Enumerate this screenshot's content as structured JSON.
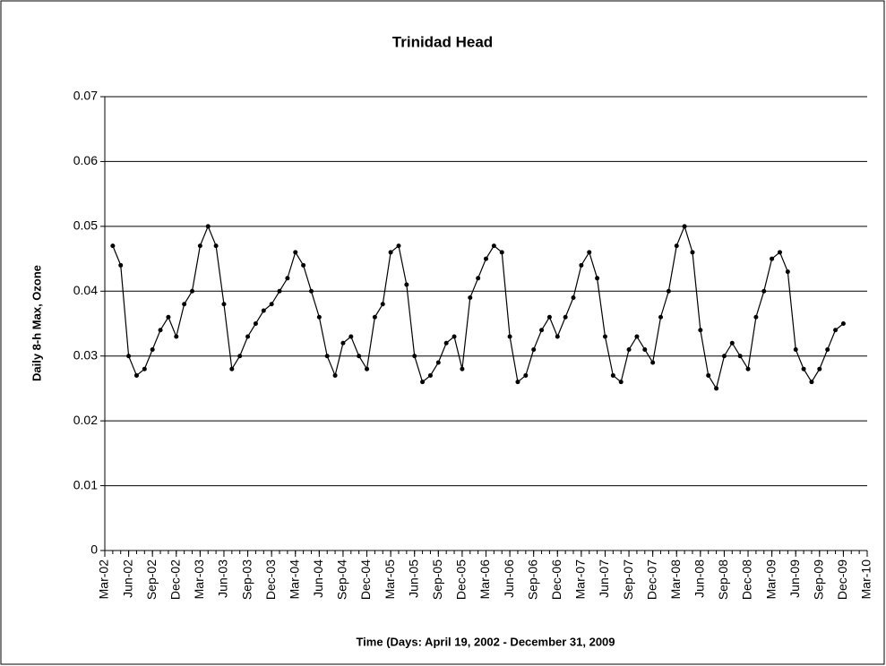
{
  "chart_data": {
    "type": "line",
    "title": "Trinidad Head",
    "y_label": "Daily 8-h Max, Ozone",
    "x_label": "Time (Days: April 19, 2002 - December 31, 2009",
    "x": [
      "2002-04",
      "2002-05",
      "2002-06",
      "2002-07",
      "2002-08",
      "2002-09",
      "2002-10",
      "2002-11",
      "2002-12",
      "2003-01",
      "2003-02",
      "2003-03",
      "2003-04",
      "2003-05",
      "2003-06",
      "2003-07",
      "2003-08",
      "2003-09",
      "2003-10",
      "2003-11",
      "2003-12",
      "2004-01",
      "2004-02",
      "2004-03",
      "2004-04",
      "2004-05",
      "2004-06",
      "2004-07",
      "2004-08",
      "2004-09",
      "2004-10",
      "2004-11",
      "2004-12",
      "2005-01",
      "2005-02",
      "2005-03",
      "2005-04",
      "2005-05",
      "2005-06",
      "2005-07",
      "2005-08",
      "2005-09",
      "2005-10",
      "2005-11",
      "2005-12",
      "2006-01",
      "2006-02",
      "2006-03",
      "2006-04",
      "2006-05",
      "2006-06",
      "2006-07",
      "2006-08",
      "2006-09",
      "2006-10",
      "2006-11",
      "2006-12",
      "2007-01",
      "2007-02",
      "2007-03",
      "2007-04",
      "2007-05",
      "2007-06",
      "2007-07",
      "2007-08",
      "2007-09",
      "2007-10",
      "2007-11",
      "2007-12",
      "2008-01",
      "2008-02",
      "2008-03",
      "2008-04",
      "2008-05",
      "2008-06",
      "2008-07",
      "2008-08",
      "2008-09",
      "2008-10",
      "2008-11",
      "2008-12",
      "2009-01",
      "2009-02",
      "2009-03",
      "2009-04",
      "2009-05",
      "2009-06",
      "2009-07",
      "2009-08",
      "2009-09",
      "2009-10",
      "2009-11",
      "2009-12"
    ],
    "values": [
      0.047,
      0.044,
      0.03,
      0.027,
      0.028,
      0.031,
      0.034,
      0.036,
      0.033,
      0.038,
      0.04,
      0.047,
      0.05,
      0.047,
      0.038,
      0.028,
      0.03,
      0.033,
      0.035,
      0.037,
      0.038,
      0.04,
      0.042,
      0.046,
      0.044,
      0.04,
      0.036,
      0.03,
      0.027,
      0.032,
      0.033,
      0.03,
      0.028,
      0.036,
      0.038,
      0.046,
      0.047,
      0.041,
      0.03,
      0.026,
      0.027,
      0.029,
      0.032,
      0.033,
      0.028,
      0.039,
      0.042,
      0.045,
      0.047,
      0.046,
      0.033,
      0.026,
      0.027,
      0.031,
      0.034,
      0.036,
      0.033,
      0.036,
      0.039,
      0.044,
      0.046,
      0.042,
      0.033,
      0.027,
      0.026,
      0.031,
      0.033,
      0.031,
      0.029,
      0.036,
      0.04,
      0.047,
      0.05,
      0.046,
      0.034,
      0.027,
      0.025,
      0.03,
      0.032,
      0.03,
      0.028,
      0.036,
      0.04,
      0.045,
      0.046,
      0.043,
      0.031,
      0.028,
      0.026,
      0.028,
      0.031,
      0.034,
      0.035
    ],
    "color": "#000000",
    "xlim": [
      "2002-03",
      "2010-03"
    ],
    "xticks": [
      {
        "value": "2002-03",
        "label": "Mar-02"
      },
      {
        "value": "2002-06",
        "label": "Jun-02"
      },
      {
        "value": "2002-09",
        "label": "Sep-02"
      },
      {
        "value": "2002-12",
        "label": "Dec-02"
      },
      {
        "value": "2003-03",
        "label": "Mar-03"
      },
      {
        "value": "2003-06",
        "label": "Jun-03"
      },
      {
        "value": "2003-09",
        "label": "Sep-03"
      },
      {
        "value": "2003-12",
        "label": "Dec-03"
      },
      {
        "value": "2004-03",
        "label": "Mar-04"
      },
      {
        "value": "2004-06",
        "label": "Jun-04"
      },
      {
        "value": "2004-09",
        "label": "Sep-04"
      },
      {
        "value": "2004-12",
        "label": "Dec-04"
      },
      {
        "value": "2005-03",
        "label": "Mar-05"
      },
      {
        "value": "2005-06",
        "label": "Jun-05"
      },
      {
        "value": "2005-09",
        "label": "Sep-05"
      },
      {
        "value": "2005-12",
        "label": "Dec-05"
      },
      {
        "value": "2006-03",
        "label": "Mar-06"
      },
      {
        "value": "2006-06",
        "label": "Jun-06"
      },
      {
        "value": "2006-09",
        "label": "Sep-06"
      },
      {
        "value": "2006-12",
        "label": "Dec-06"
      },
      {
        "value": "2007-03",
        "label": "Mar-07"
      },
      {
        "value": "2007-06",
        "label": "Jun-07"
      },
      {
        "value": "2007-09",
        "label": "Sep-07"
      },
      {
        "value": "2007-12",
        "label": "Dec-07"
      },
      {
        "value": "2008-03",
        "label": "Mar-08"
      },
      {
        "value": "2008-06",
        "label": "Jun-08"
      },
      {
        "value": "2008-09",
        "label": "Sep-08"
      },
      {
        "value": "2008-12",
        "label": "Dec-08"
      },
      {
        "value": "2009-03",
        "label": "Mar-09"
      },
      {
        "value": "2009-06",
        "label": "Jun-09"
      },
      {
        "value": "2009-09",
        "label": "Sep-09"
      },
      {
        "value": "2009-12",
        "label": "Dec-09"
      },
      {
        "value": "2010-03",
        "label": "Mar-10"
      }
    ],
    "ylim": [
      0,
      0.07
    ],
    "yticks": [
      0,
      0.01,
      0.02,
      0.03,
      0.04,
      0.05,
      0.06,
      0.07
    ],
    "grid": true
  }
}
